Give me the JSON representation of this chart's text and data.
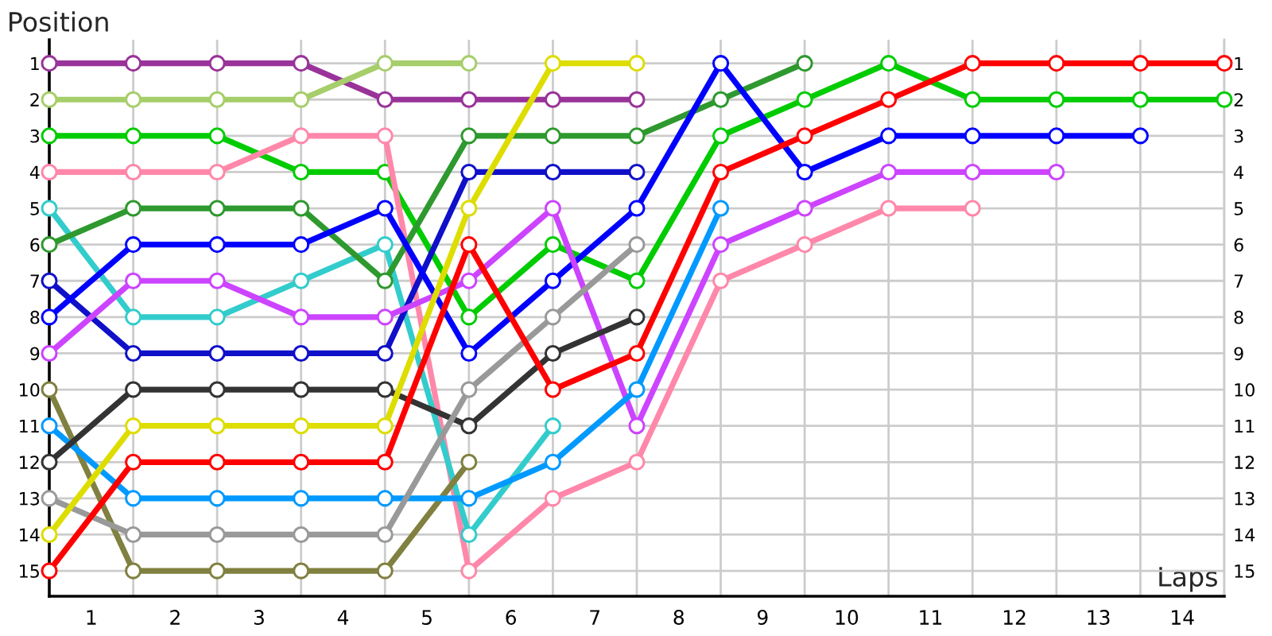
{
  "chart_data": {
    "type": "line",
    "xlabel": "Laps",
    "ylabel": "Position",
    "x": [
      0,
      1,
      2,
      3,
      4,
      5,
      6,
      7,
      8,
      9,
      10,
      11,
      12,
      13,
      14
    ],
    "xlim": [
      0,
      14
    ],
    "xticks": [
      {
        "value": 0,
        "label": null
      },
      {
        "value": 1,
        "label": null
      },
      {
        "value": 2,
        "label": null
      },
      {
        "value": 3,
        "label": null
      },
      {
        "value": 4,
        "label": null
      },
      {
        "value": 5,
        "label": null
      },
      {
        "value": 6,
        "label": null
      },
      {
        "value": 7,
        "label": null
      },
      {
        "value": 8,
        "label": null
      },
      {
        "value": 9,
        "label": null
      },
      {
        "value": 10,
        "label": null
      },
      {
        "value": 11,
        "label": null
      },
      {
        "value": 12,
        "label": null
      },
      {
        "value": 13,
        "label": null
      },
      {
        "value": 14,
        "label": null
      },
      {
        "value": 0.5,
        "label": "1"
      },
      {
        "value": 1.5,
        "label": "2"
      },
      {
        "value": 2.5,
        "label": "3"
      },
      {
        "value": 3.5,
        "label": "4"
      },
      {
        "value": 4.5,
        "label": "5"
      },
      {
        "value": 5.5,
        "label": "6"
      },
      {
        "value": 6.5,
        "label": "7"
      },
      {
        "value": 7.5,
        "label": "8"
      },
      {
        "value": 8.5,
        "label": "9"
      },
      {
        "value": 9.5,
        "label": "10"
      },
      {
        "value": 10.5,
        "label": "11"
      },
      {
        "value": 11.5,
        "label": "12"
      },
      {
        "value": 12.5,
        "label": "13"
      },
      {
        "value": 13.5,
        "label": "14"
      }
    ],
    "ylim": [
      15.7,
      0.35
    ],
    "yticks": [
      1,
      2,
      3,
      4,
      5,
      6,
      7,
      8,
      9,
      10,
      11,
      12,
      13,
      14,
      15
    ],
    "y2lim": [
      15.7,
      0.35
    ],
    "y2ticks": [
      1,
      2,
      3,
      4,
      5,
      6,
      7,
      8,
      9,
      10,
      11,
      12,
      13,
      14,
      15
    ],
    "grid": true,
    "marker": "circle",
    "line_style": "solid",
    "series": [
      {
        "color": "#993399",
        "values": [
          1,
          1,
          1,
          1,
          2,
          2,
          2,
          2,
          null,
          null,
          null,
          null,
          null,
          null,
          null
        ]
      },
      {
        "color": "#a6ce6a",
        "values": [
          2,
          2,
          2,
          2,
          1,
          1,
          null,
          null,
          null,
          null,
          null,
          null,
          null,
          null,
          null
        ]
      },
      {
        "color": "#00cc00",
        "values": [
          3,
          3,
          3,
          4,
          4,
          8,
          6,
          7,
          3,
          2,
          1,
          2,
          2,
          2,
          2
        ]
      },
      {
        "color": "#ff88aa",
        "values": [
          4,
          4,
          4,
          3,
          3,
          15,
          13,
          12,
          7,
          6,
          5,
          5,
          null,
          null,
          null
        ]
      },
      {
        "color": "#33cccc",
        "values": [
          5,
          8,
          8,
          7,
          6,
          14,
          11,
          null,
          null,
          null,
          null,
          null,
          null,
          null,
          null
        ]
      },
      {
        "color": "#2e992e",
        "values": [
          6,
          5,
          5,
          5,
          7,
          3,
          3,
          3,
          2,
          1,
          null,
          null,
          null,
          null,
          null
        ]
      },
      {
        "color": "#1010c8",
        "values": [
          7,
          9,
          9,
          9,
          9,
          4,
          4,
          4,
          null,
          null,
          null,
          null,
          null,
          null,
          null
        ]
      },
      {
        "color": "#0000ff",
        "values": [
          8,
          6,
          6,
          6,
          5,
          9,
          7,
          5,
          1,
          4,
          3,
          3,
          3,
          3,
          null
        ]
      },
      {
        "color": "#cc44ff",
        "values": [
          9,
          7,
          7,
          8,
          8,
          7,
          5,
          11,
          6,
          5,
          4,
          4,
          4,
          null,
          null
        ]
      },
      {
        "color": "#808040",
        "values": [
          10,
          15,
          15,
          15,
          15,
          12,
          null,
          null,
          null,
          null,
          null,
          null,
          null,
          null,
          null
        ]
      },
      {
        "color": "#0099ff",
        "values": [
          11,
          13,
          13,
          13,
          13,
          13,
          12,
          10,
          5,
          null,
          null,
          null,
          null,
          null,
          null
        ]
      },
      {
        "color": "#333333",
        "values": [
          12,
          10,
          10,
          10,
          10,
          11,
          9,
          8,
          null,
          null,
          null,
          null,
          null,
          null,
          null
        ]
      },
      {
        "color": "#999999",
        "values": [
          13,
          14,
          14,
          14,
          14,
          10,
          8,
          6,
          null,
          null,
          null,
          null,
          null,
          null,
          null
        ]
      },
      {
        "color": "#dddd00",
        "values": [
          14,
          11,
          11,
          11,
          11,
          5,
          1,
          1,
          null,
          null,
          null,
          null,
          null,
          null,
          null
        ]
      },
      {
        "color": "#ff0000",
        "values": [
          15,
          12,
          12,
          12,
          12,
          6,
          10,
          9,
          4,
          3,
          2,
          1,
          1,
          1,
          1
        ]
      }
    ]
  }
}
